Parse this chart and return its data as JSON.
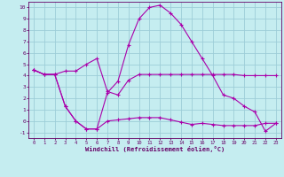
{
  "background_color": "#c5edf0",
  "grid_color": "#9dcdd8",
  "line_color": "#aa00aa",
  "spine_color": "#660066",
  "tick_color": "#660066",
  "xlabel": "Windchill (Refroidissement éolien,°C)",
  "xlim": [
    -0.5,
    23.5
  ],
  "ylim": [
    -1.5,
    10.5
  ],
  "ytick_vals": [
    -1,
    0,
    1,
    2,
    3,
    4,
    5,
    6,
    7,
    8,
    9,
    10
  ],
  "xtick_vals": [
    0,
    1,
    2,
    3,
    4,
    5,
    6,
    7,
    8,
    9,
    10,
    11,
    12,
    13,
    14,
    15,
    16,
    17,
    18,
    19,
    20,
    21,
    22,
    23
  ],
  "line1_x": [
    0,
    1,
    2,
    3,
    4,
    5,
    6,
    7,
    8,
    9,
    10,
    11,
    12,
    13,
    14,
    15,
    16,
    17,
    18,
    19,
    20,
    21,
    22,
    23
  ],
  "line1_y": [
    4.5,
    4.1,
    4.1,
    4.4,
    4.4,
    5.0,
    5.5,
    2.6,
    2.3,
    3.6,
    4.1,
    4.1,
    4.1,
    4.1,
    4.1,
    4.1,
    4.1,
    4.1,
    4.1,
    4.1,
    4.0,
    4.0,
    4.0,
    4.0
  ],
  "line2_x": [
    0,
    1,
    2,
    3,
    4,
    5,
    6,
    7,
    8,
    9,
    10,
    11,
    12,
    13,
    14,
    15,
    16,
    17,
    18,
    19,
    20,
    21,
    22,
    23
  ],
  "line2_y": [
    4.5,
    4.1,
    4.1,
    1.3,
    0.0,
    -0.7,
    -0.7,
    2.5,
    3.5,
    6.7,
    9.0,
    10.0,
    10.2,
    9.5,
    8.5,
    7.0,
    5.5,
    4.0,
    2.3,
    2.0,
    1.3,
    0.8,
    -0.9,
    -0.2
  ],
  "line3_x": [
    0,
    1,
    2,
    3,
    4,
    5,
    6,
    7,
    8,
    9,
    10,
    11,
    12,
    13,
    14,
    15,
    16,
    17,
    18,
    19,
    20,
    21,
    22,
    23
  ],
  "line3_y": [
    4.5,
    4.1,
    4.1,
    1.3,
    0.0,
    -0.7,
    -0.7,
    0.0,
    0.1,
    0.2,
    0.3,
    0.3,
    0.3,
    0.1,
    -0.1,
    -0.3,
    -0.2,
    -0.3,
    -0.4,
    -0.4,
    -0.4,
    -0.4,
    -0.2,
    -0.2
  ]
}
